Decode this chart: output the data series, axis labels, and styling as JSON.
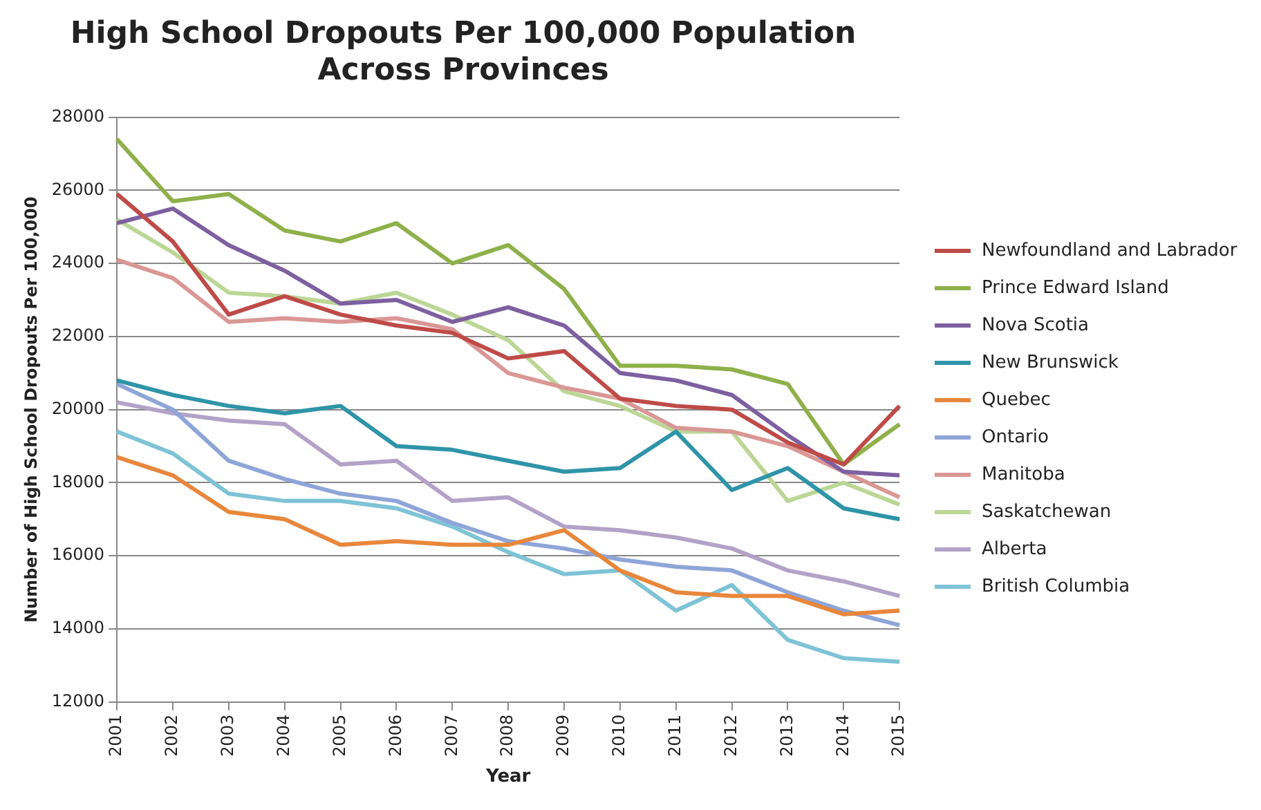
{
  "chart_data": {
    "type": "line",
    "title": "High School Dropouts Per 100,000 Population Across Provinces",
    "xlabel": "Year",
    "ylabel": "Number of High School Dropouts Per 100,000",
    "categories": [
      "2001",
      "2002",
      "2003",
      "2004",
      "2005",
      "2006",
      "2007",
      "2008",
      "2009",
      "2010",
      "2011",
      "2012",
      "2013",
      "2014",
      "2015"
    ],
    "series": [
      {
        "name": "Newfoundland and Labrador",
        "color": "#be4b48",
        "values": [
          25900,
          24600,
          22600,
          23100,
          22600,
          22300,
          22100,
          21400,
          21600,
          20300,
          20100,
          20000,
          19100,
          18500,
          20100
        ]
      },
      {
        "name": "Prince Edward Island",
        "color": "#8fb04a",
        "values": [
          27400,
          25700,
          25900,
          24900,
          24600,
          25100,
          24000,
          24500,
          23300,
          21200,
          21200,
          21100,
          20700,
          18500,
          19600
        ]
      },
      {
        "name": "Nova Scotia",
        "color": "#7d60a0",
        "values": [
          25100,
          25500,
          24500,
          23800,
          22900,
          23000,
          22400,
          22800,
          22300,
          21000,
          20800,
          20400,
          19300,
          18300,
          18200
        ]
      },
      {
        "name": "New Brunswick",
        "color": "#2f94a8",
        "values": [
          20800,
          20400,
          20100,
          19900,
          20100,
          19000,
          18900,
          18600,
          18300,
          18400,
          19400,
          17800,
          18400,
          17300,
          17000
        ]
      },
      {
        "name": "Quebec",
        "color": "#e8873c",
        "values": [
          18700,
          18200,
          17200,
          17000,
          16300,
          16400,
          16300,
          16300,
          16700,
          15600,
          15000,
          14900,
          14900,
          14400,
          14500
        ]
      },
      {
        "name": "Ontario",
        "color": "#8ea5d8",
        "values": [
          20700,
          20000,
          18600,
          18100,
          17700,
          17500,
          16900,
          16400,
          16200,
          15900,
          15700,
          15600,
          15000,
          14500,
          14100
        ]
      },
      {
        "name": "Manitoba",
        "color": "#d99795",
        "values": [
          24100,
          23600,
          22400,
          22500,
          22400,
          22500,
          22200,
          21000,
          20600,
          20300,
          19500,
          19400,
          19000,
          18300,
          17600
        ]
      },
      {
        "name": "Saskatchewan",
        "color": "#bcd696",
        "values": [
          25200,
          24300,
          23200,
          23100,
          22900,
          23200,
          22600,
          21900,
          20500,
          20100,
          19400,
          19400,
          17500,
          18000,
          17400
        ]
      },
      {
        "name": "Alberta",
        "color": "#b3a2c7",
        "values": [
          20200,
          19900,
          19700,
          19600,
          18500,
          18600,
          17500,
          17600,
          16800,
          16700,
          16500,
          16200,
          15600,
          15300,
          14900
        ]
      },
      {
        "name": "British Columbia",
        "color": "#7ec3d6",
        "values": [
          19400,
          18800,
          17700,
          17500,
          17500,
          17300,
          16800,
          16100,
          15500,
          15600,
          14500,
          15200,
          13700,
          13200,
          13100
        ]
      }
    ],
    "ylim": [
      12000,
      28000
    ],
    "yticks": [
      12000,
      14000,
      16000,
      18000,
      20000,
      22000,
      24000,
      26000,
      28000
    ],
    "grid": "y",
    "legend": "right",
    "marker": "none",
    "line_style": "solid"
  }
}
